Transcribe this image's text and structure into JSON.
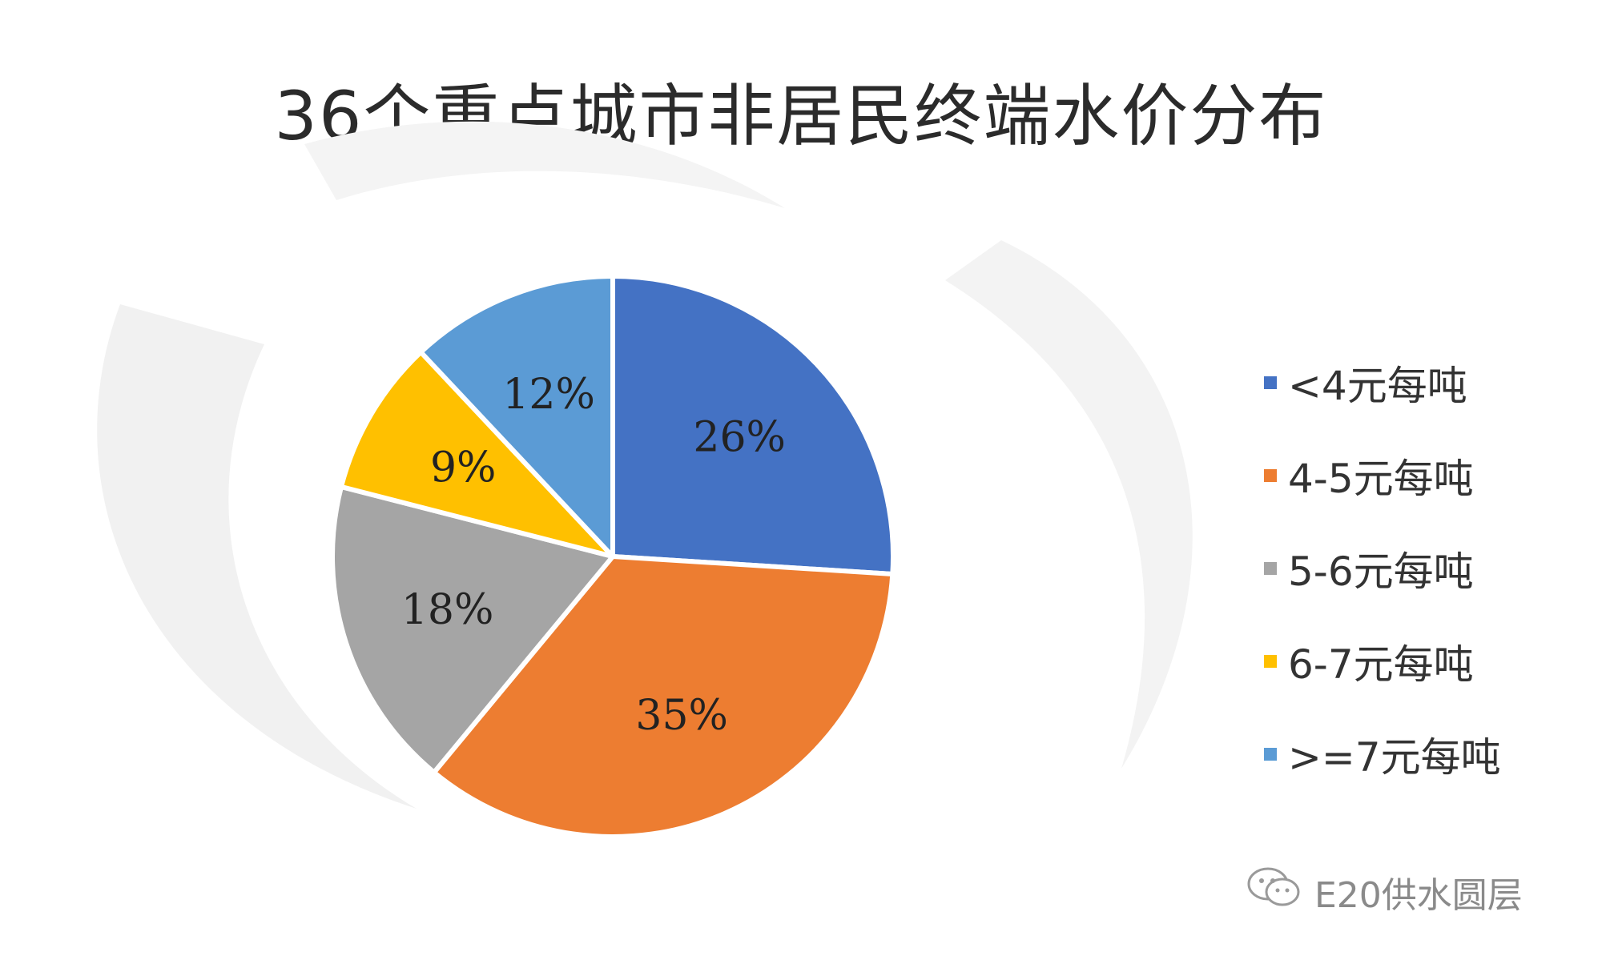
{
  "chart_data": {
    "type": "pie",
    "title": "36个重点城市非居民终端水价分布",
    "categories": [
      "<4元每吨",
      "4-5元每吨",
      "5-6元每吨",
      "6-7元每吨",
      ">=7元每吨"
    ],
    "values": [
      26,
      35,
      18,
      9,
      12
    ],
    "labels": [
      "26%",
      "35%",
      "18%",
      "9%",
      "12%"
    ],
    "colors": [
      "#4472c4",
      "#ed7d31",
      "#a5a5a5",
      "#ffc000",
      "#5b9bd5"
    ],
    "legend_position": "right"
  },
  "watermark": {
    "icon": "wechat-icon",
    "text": "E20供水圆层"
  }
}
